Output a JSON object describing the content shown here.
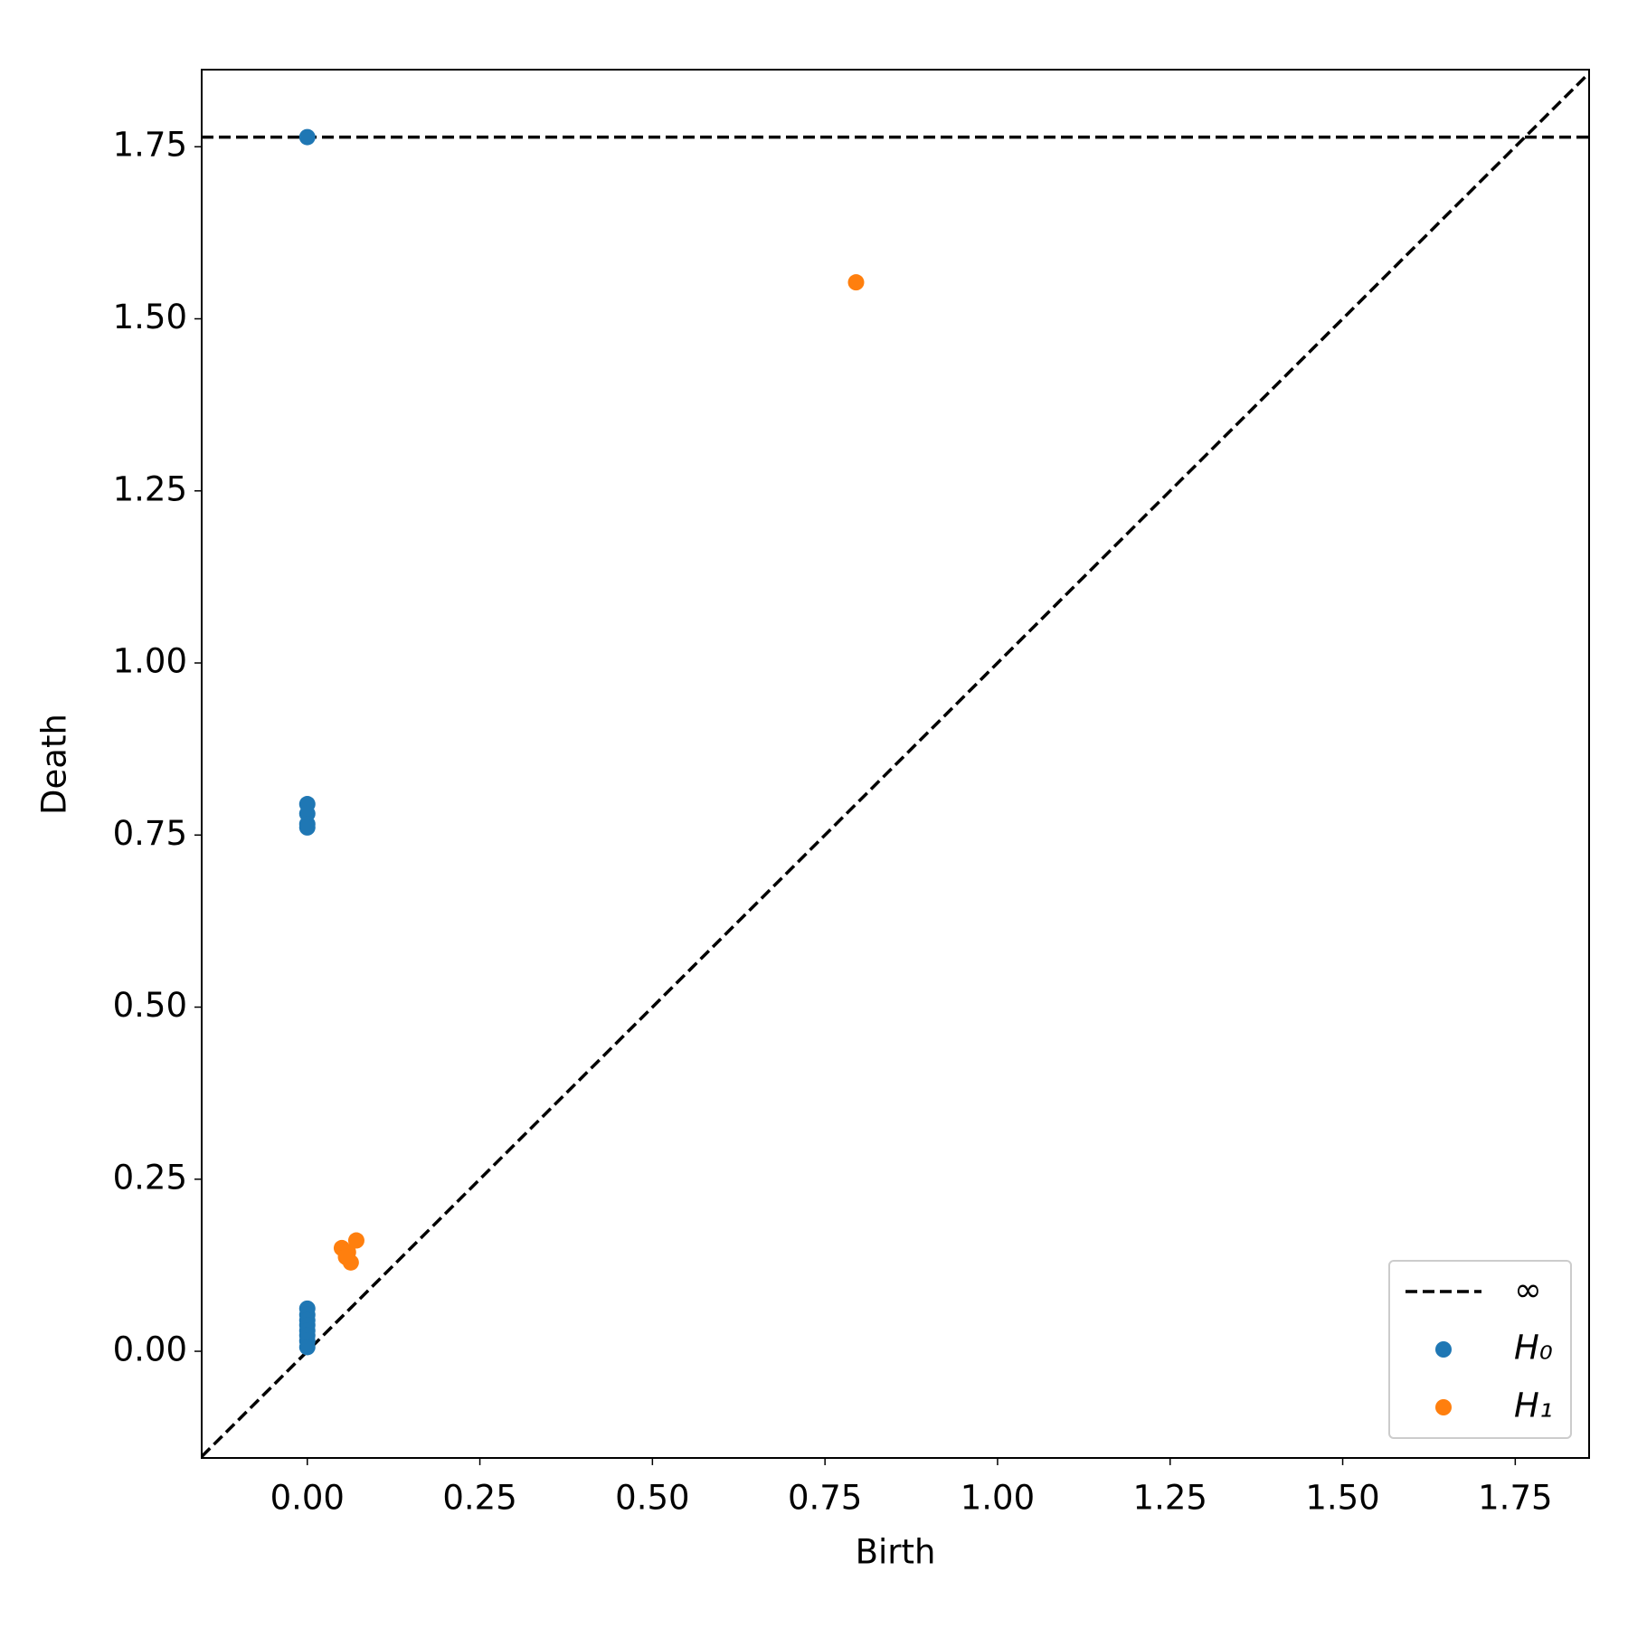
{
  "chart_data": {
    "type": "scatter",
    "xlabel": "Birth",
    "ylabel": "Death",
    "xlim": [
      -0.153,
      1.857
    ],
    "ylim": [
      -0.155,
      1.862
    ],
    "xticks": [
      {
        "value": 0,
        "label": "0.00"
      },
      {
        "value": 0.25,
        "label": "0.25"
      },
      {
        "value": 0.5,
        "label": "0.50"
      },
      {
        "value": 0.75,
        "label": "0.75"
      },
      {
        "value": 1,
        "label": "1.00"
      },
      {
        "value": 1.25,
        "label": "1.25"
      },
      {
        "value": 1.5,
        "label": "1.50"
      },
      {
        "value": 1.75,
        "label": "1.75"
      }
    ],
    "yticks": [
      {
        "value": 0,
        "label": "0.00"
      },
      {
        "value": 0.25,
        "label": "0.25"
      },
      {
        "value": 0.5,
        "label": "0.50"
      },
      {
        "value": 0.75,
        "label": "0.75"
      },
      {
        "value": 1,
        "label": "1.00"
      },
      {
        "value": 1.25,
        "label": "1.25"
      },
      {
        "value": 1.5,
        "label": "1.50"
      },
      {
        "value": 1.75,
        "label": "1.75"
      }
    ],
    "reference_line": {
      "name": "∞",
      "y": 1.764,
      "color": "#000000"
    },
    "legend": "lower right",
    "series": [
      {
        "name": "H₀",
        "color": "#1f77b4",
        "x": [
          0,
          0,
          0,
          0,
          0,
          0,
          0,
          0,
          0,
          0,
          0,
          0,
          0
        ],
        "y": [
          1.764,
          0.795,
          0.781,
          0.766,
          0.761,
          0.062,
          0.053,
          0.045,
          0.038,
          0.03,
          0.023,
          0.015,
          0.006
        ]
      },
      {
        "name": "H₁",
        "color": "#ff7f0e",
        "x": [
          0.795,
          0.05,
          0.059,
          0.071,
          0.063,
          0.056
        ],
        "y": [
          1.553,
          0.15,
          0.144,
          0.161,
          0.129,
          0.137
        ]
      }
    ]
  }
}
